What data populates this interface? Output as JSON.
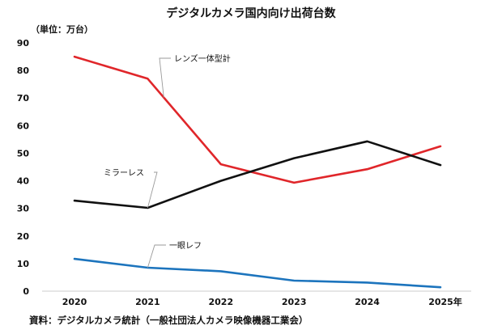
{
  "chart_data": {
    "type": "line",
    "title": "デジタルカメラ国内向け出荷台数",
    "unit_label": "（単位：万台）",
    "x": [
      "2020",
      "2021",
      "2022",
      "2023",
      "2024",
      "2025年"
    ],
    "ylim": [
      0,
      90
    ],
    "yticks": [
      "0",
      "10",
      "20",
      "30",
      "40",
      "50",
      "60",
      "70",
      "80",
      "90"
    ],
    "grid": false,
    "series": [
      {
        "name": "レンズ一体型計",
        "color": "#e0262a",
        "values": [
          85,
          77,
          46,
          39.3,
          44.2,
          52.5
        ]
      },
      {
        "name": "ミラーレス",
        "color": "#111111",
        "values": [
          32.8,
          30.2,
          40,
          48.2,
          54.3,
          45.7
        ]
      },
      {
        "name": "一眼レフ",
        "color": "#1c74bd",
        "values": [
          11.7,
          8.5,
          7.2,
          3.8,
          3.1,
          1.4
        ]
      }
    ],
    "source": "資料：デジタルカメラ統計（一般社団法人カメラ映像機器工業会）"
  }
}
